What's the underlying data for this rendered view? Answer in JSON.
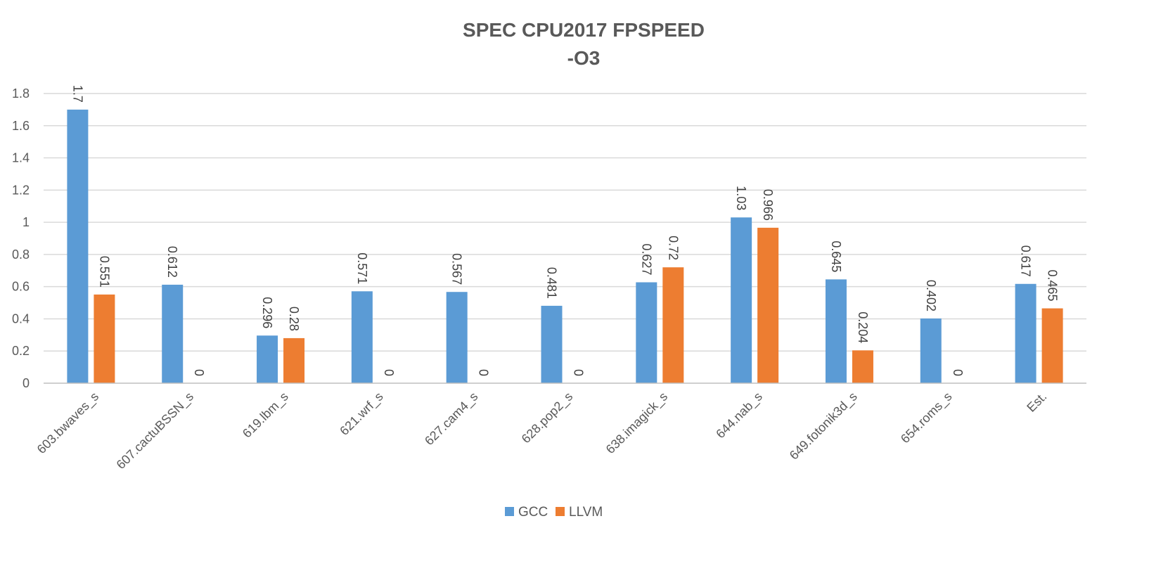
{
  "chart_data": {
    "type": "bar",
    "title": "SPEC CPU2017 FPSPEED",
    "subtitle": "-O3",
    "categories": [
      "603.bwaves_s",
      "607.cactuBSSN_s",
      "619.lbm_s",
      "621.wrf_s",
      "627.cam4_s",
      "628.pop2_s",
      "638.imagick_s",
      "644.nab_s",
      "649.fotonik3d_s",
      "654.roms_s",
      "Est."
    ],
    "series": [
      {
        "name": "GCC",
        "color": "#5b9bd5",
        "values": [
          1.7,
          0.612,
          0.296,
          0.571,
          0.567,
          0.481,
          0.627,
          1.03,
          0.645,
          0.402,
          0.617
        ]
      },
      {
        "name": "LLVM",
        "color": "#ed7d31",
        "values": [
          0.551,
          0,
          0.28,
          0,
          0,
          0,
          0.72,
          0.966,
          0.204,
          0,
          0.465
        ]
      }
    ],
    "ylim": [
      0,
      1.8
    ],
    "yticks": [
      "0",
      "0.2",
      "0.4",
      "0.6",
      "0.8",
      "1",
      "1.2",
      "1.4",
      "1.6",
      "1.8"
    ],
    "grid": true,
    "legend_position": "bottom"
  }
}
